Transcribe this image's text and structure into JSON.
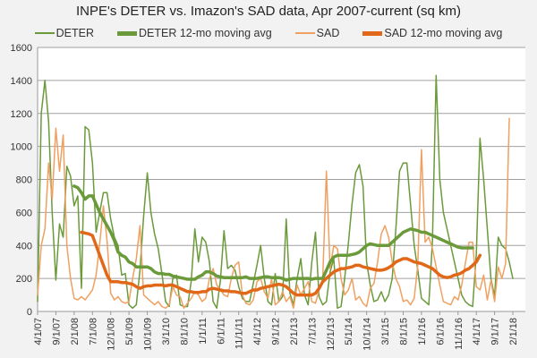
{
  "chart_data": {
    "type": "line",
    "title": "INPE's DETER vs. Imazon's SAD data, Apr 2007-current (sq km)",
    "xlabel": "",
    "ylabel": "",
    "ylim": [
      0,
      1600
    ],
    "yticks": [
      "0",
      "200",
      "400",
      "600",
      "800",
      "1000",
      "1200",
      "1400",
      "1600"
    ],
    "x_start": "2007-04",
    "x_step": "1 month",
    "xticks": [
      "4/1/07",
      "9/1/07",
      "2/1/08",
      "7/1/08",
      "12/1/08",
      "5/1/09",
      "10/1/09",
      "3/1/10",
      "8/1/10",
      "1/1/11",
      "6/1/11",
      "11/1/11",
      "4/1/12",
      "9/1/12",
      "2/1/13",
      "7/1/13",
      "12/1/13",
      "5/1/14",
      "10/1/14",
      "3/1/15",
      "8/1/15",
      "1/1/16",
      "6/1/16",
      "11/1/16",
      "4/1/17",
      "9/1/17",
      "2/1/18"
    ],
    "grid": true,
    "legend_position": "top",
    "series": [
      {
        "name": "DETER",
        "color": "#6a9a3a",
        "width": "thin",
        "values": [
          60,
          1200,
          1400,
          1150,
          600,
          190,
          530,
          450,
          880,
          820,
          640,
          700,
          140,
          1120,
          1100,
          900,
          480,
          600,
          720,
          720,
          560,
          450,
          400,
          220,
          230,
          40,
          20,
          40,
          250,
          580,
          840,
          600,
          470,
          380,
          230,
          60,
          30,
          200,
          220,
          40,
          30,
          30,
          180,
          500,
          300,
          450,
          420,
          300,
          60,
          20,
          190,
          490,
          260,
          280,
          250,
          150,
          80,
          60,
          60,
          170,
          280,
          400,
          200,
          60,
          40,
          230,
          60,
          90,
          560,
          110,
          40,
          200,
          320,
          100,
          40,
          300,
          480,
          90,
          40,
          60,
          240,
          320,
          20,
          30,
          200,
          410,
          650,
          840,
          890,
          760,
          300,
          160,
          60,
          70,
          120,
          60,
          100,
          200,
          500,
          850,
          900,
          900,
          650,
          400,
          250,
          80,
          60,
          40,
          430,
          1430,
          800,
          600,
          500,
          400,
          300,
          200,
          100,
          60,
          40,
          30,
          350,
          1050,
          800,
          500,
          200,
          90,
          450,
          400,
          380,
          300,
          200,
          null,
          null,
          null,
          null
        ]
      },
      {
        "name": "DETER 12-mo moving avg",
        "color": "#6a9a3a",
        "width": "thick",
        "values": [
          null,
          null,
          null,
          null,
          null,
          null,
          null,
          null,
          null,
          null,
          760,
          750,
          720,
          680,
          700,
          700,
          650,
          600,
          560,
          520,
          480,
          430,
          360,
          340,
          330,
          300,
          290,
          270,
          270,
          270,
          270,
          260,
          240,
          230,
          230,
          225,
          225,
          215,
          210,
          205,
          200,
          195,
          195,
          195,
          210,
          220,
          240,
          240,
          230,
          215,
          210,
          205,
          205,
          205,
          205,
          205,
          205,
          210,
          200,
          200,
          200,
          205,
          210,
          210,
          205,
          205,
          205,
          200,
          190,
          195,
          200,
          200,
          200,
          200,
          200,
          195,
          200,
          200,
          200,
          250,
          300,
          330,
          340,
          340,
          340,
          340,
          345,
          350,
          360,
          380,
          400,
          410,
          405,
          400,
          400,
          400,
          400,
          420,
          440,
          460,
          480,
          490,
          500,
          495,
          490,
          480,
          480,
          470,
          460,
          450,
          440,
          430,
          420,
          410,
          400,
          390,
          385,
          385,
          385,
          385,
          null,
          null,
          null,
          null,
          null,
          null,
          null,
          null,
          null,
          null,
          null,
          null,
          null,
          null
        ]
      },
      {
        "name": "SAD",
        "color": "#f0a060",
        "width": "thin",
        "values": [
          100,
          400,
          500,
          900,
          680,
          1110,
          850,
          1070,
          400,
          200,
          80,
          70,
          90,
          70,
          100,
          130,
          220,
          410,
          640,
          430,
          110,
          70,
          90,
          60,
          50,
          60,
          200,
          320,
          520,
          100,
          80,
          60,
          40,
          60,
          30,
          20,
          40,
          150,
          100,
          90,
          20,
          50,
          80,
          120,
          100,
          60,
          80,
          200,
          260,
          160,
          130,
          100,
          90,
          200,
          280,
          300,
          100,
          50,
          40,
          70,
          180,
          200,
          120,
          80,
          200,
          40,
          60,
          120,
          60,
          90,
          20,
          160,
          100,
          140,
          180,
          60,
          50,
          130,
          200,
          850,
          260,
          400,
          380,
          200,
          100,
          130,
          200,
          70,
          90,
          50,
          30,
          140,
          170,
          300,
          470,
          520,
          450,
          300,
          200,
          150,
          60,
          70,
          40,
          80,
          280,
          980,
          420,
          450,
          380,
          270,
          160,
          60,
          50,
          40,
          90,
          70,
          160,
          290,
          420,
          420,
          150,
          130,
          220,
          70,
          190,
          60,
          270,
          200,
          290,
          1170
        ]
      },
      {
        "name": "SAD 12-mo moving avg",
        "color": "#e06818",
        "width": "thick",
        "values": [
          null,
          null,
          null,
          null,
          null,
          null,
          null,
          null,
          null,
          null,
          null,
          null,
          480,
          475,
          470,
          460,
          400,
          340,
          280,
          220,
          180,
          180,
          180,
          175,
          175,
          170,
          165,
          150,
          140,
          150,
          155,
          155,
          160,
          160,
          160,
          155,
          160,
          160,
          150,
          140,
          130,
          120,
          120,
          115,
          115,
          120,
          120,
          135,
          140,
          135,
          130,
          125,
          125,
          120,
          120,
          115,
          110,
          110,
          120,
          130,
          130,
          140,
          145,
          150,
          155,
          160,
          165,
          160,
          150,
          130,
          110,
          100,
          100,
          100,
          100,
          100,
          110,
          140,
          180,
          200,
          220,
          240,
          250,
          260,
          260,
          265,
          270,
          280,
          280,
          270,
          265,
          260,
          255,
          250,
          250,
          255,
          265,
          280,
          300,
          310,
          320,
          320,
          310,
          300,
          295,
          290,
          280,
          270,
          260,
          240,
          220,
          210,
          205,
          210,
          220,
          225,
          235,
          250,
          260,
          280,
          300,
          340,
          null,
          null,
          null,
          null,
          null,
          null,
          null,
          null,
          null,
          null,
          null,
          null
        ]
      }
    ]
  }
}
